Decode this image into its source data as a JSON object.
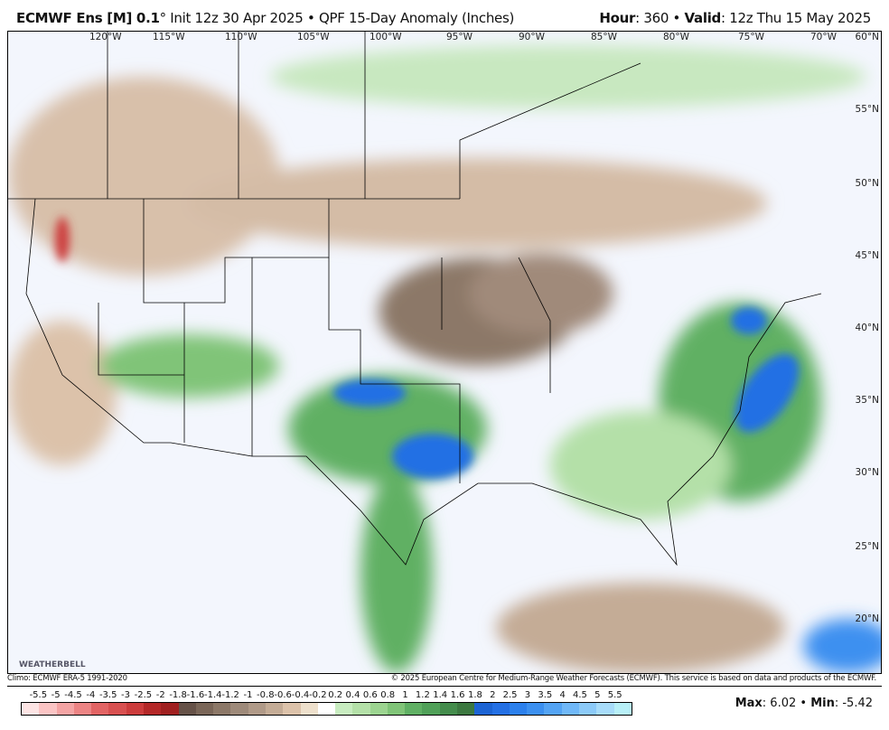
{
  "header": {
    "model": "ECMWF Ens [M] 0.1",
    "degree": "°",
    "init": " Init 12z 30 Apr 2025 • QPF 15-Day Anomaly (Inches)",
    "hour_label": "Hour",
    "hour_value": ": 360 • ",
    "valid_label": "Valid",
    "valid_value": ": 12z Thu 15 May 2025"
  },
  "map": {
    "longitudes": [
      "120°W",
      "115°W",
      "110°W",
      "105°W",
      "100°W",
      "95°W",
      "90°W",
      "85°W",
      "80°W",
      "75°W",
      "70°W"
    ],
    "latitudes": [
      "60°N",
      "55°N",
      "50°N",
      "45°N",
      "40°N",
      "35°N",
      "30°N",
      "25°N",
      "20°N"
    ],
    "logo": "WEATHERBELL"
  },
  "footer": {
    "climo": "Climo: ECMWF ERA-5 1991-2020",
    "copyright": "© 2025 European Centre for Medium-Range Weather Forecasts (ECMWF). This service is based on data and products of the ECMWF."
  },
  "colorbar": {
    "labels": [
      "-5.5",
      "-5",
      "-4.5",
      "-4",
      "-3.5",
      "-3",
      "-2.5",
      "-2",
      "-1.8",
      "-1.6",
      "-1.4",
      "-1.2",
      "-1",
      "-0.8",
      "-0.6",
      "-0.4",
      "-0.2",
      "0.2",
      "0.4",
      "0.6",
      "0.8",
      "1",
      "1.2",
      "1.4",
      "1.6",
      "1.8",
      "2",
      "2.5",
      "3",
      "3.5",
      "4",
      "4.5",
      "5",
      "5.5"
    ],
    "colors": [
      "#fde4e4",
      "#fbc4c4",
      "#f4a4a4",
      "#ec8484",
      "#e26464",
      "#d85050",
      "#cc3c3c",
      "#b42828",
      "#a02020",
      "#665248",
      "#7a6658",
      "#8c7868",
      "#9e8a7a",
      "#b09a88",
      "#c4ac96",
      "#dcc2aa",
      "#eee0cc",
      "#ffffff",
      "#c8ecc0",
      "#b4e0a8",
      "#9cd490",
      "#80c478",
      "#60b064",
      "#50a058",
      "#448c4c",
      "#3c7840",
      "#1c64d4",
      "#2470e4",
      "#2c80ec",
      "#3c90f0",
      "#54a4f4",
      "#70b8f8",
      "#8ccaf8",
      "#a8dcfa",
      "#b8f0f8"
    ]
  },
  "stats": {
    "max_label": "Max",
    "max_value": ": 6.02 • ",
    "min_label": "Min",
    "min_value": ": -5.42"
  }
}
